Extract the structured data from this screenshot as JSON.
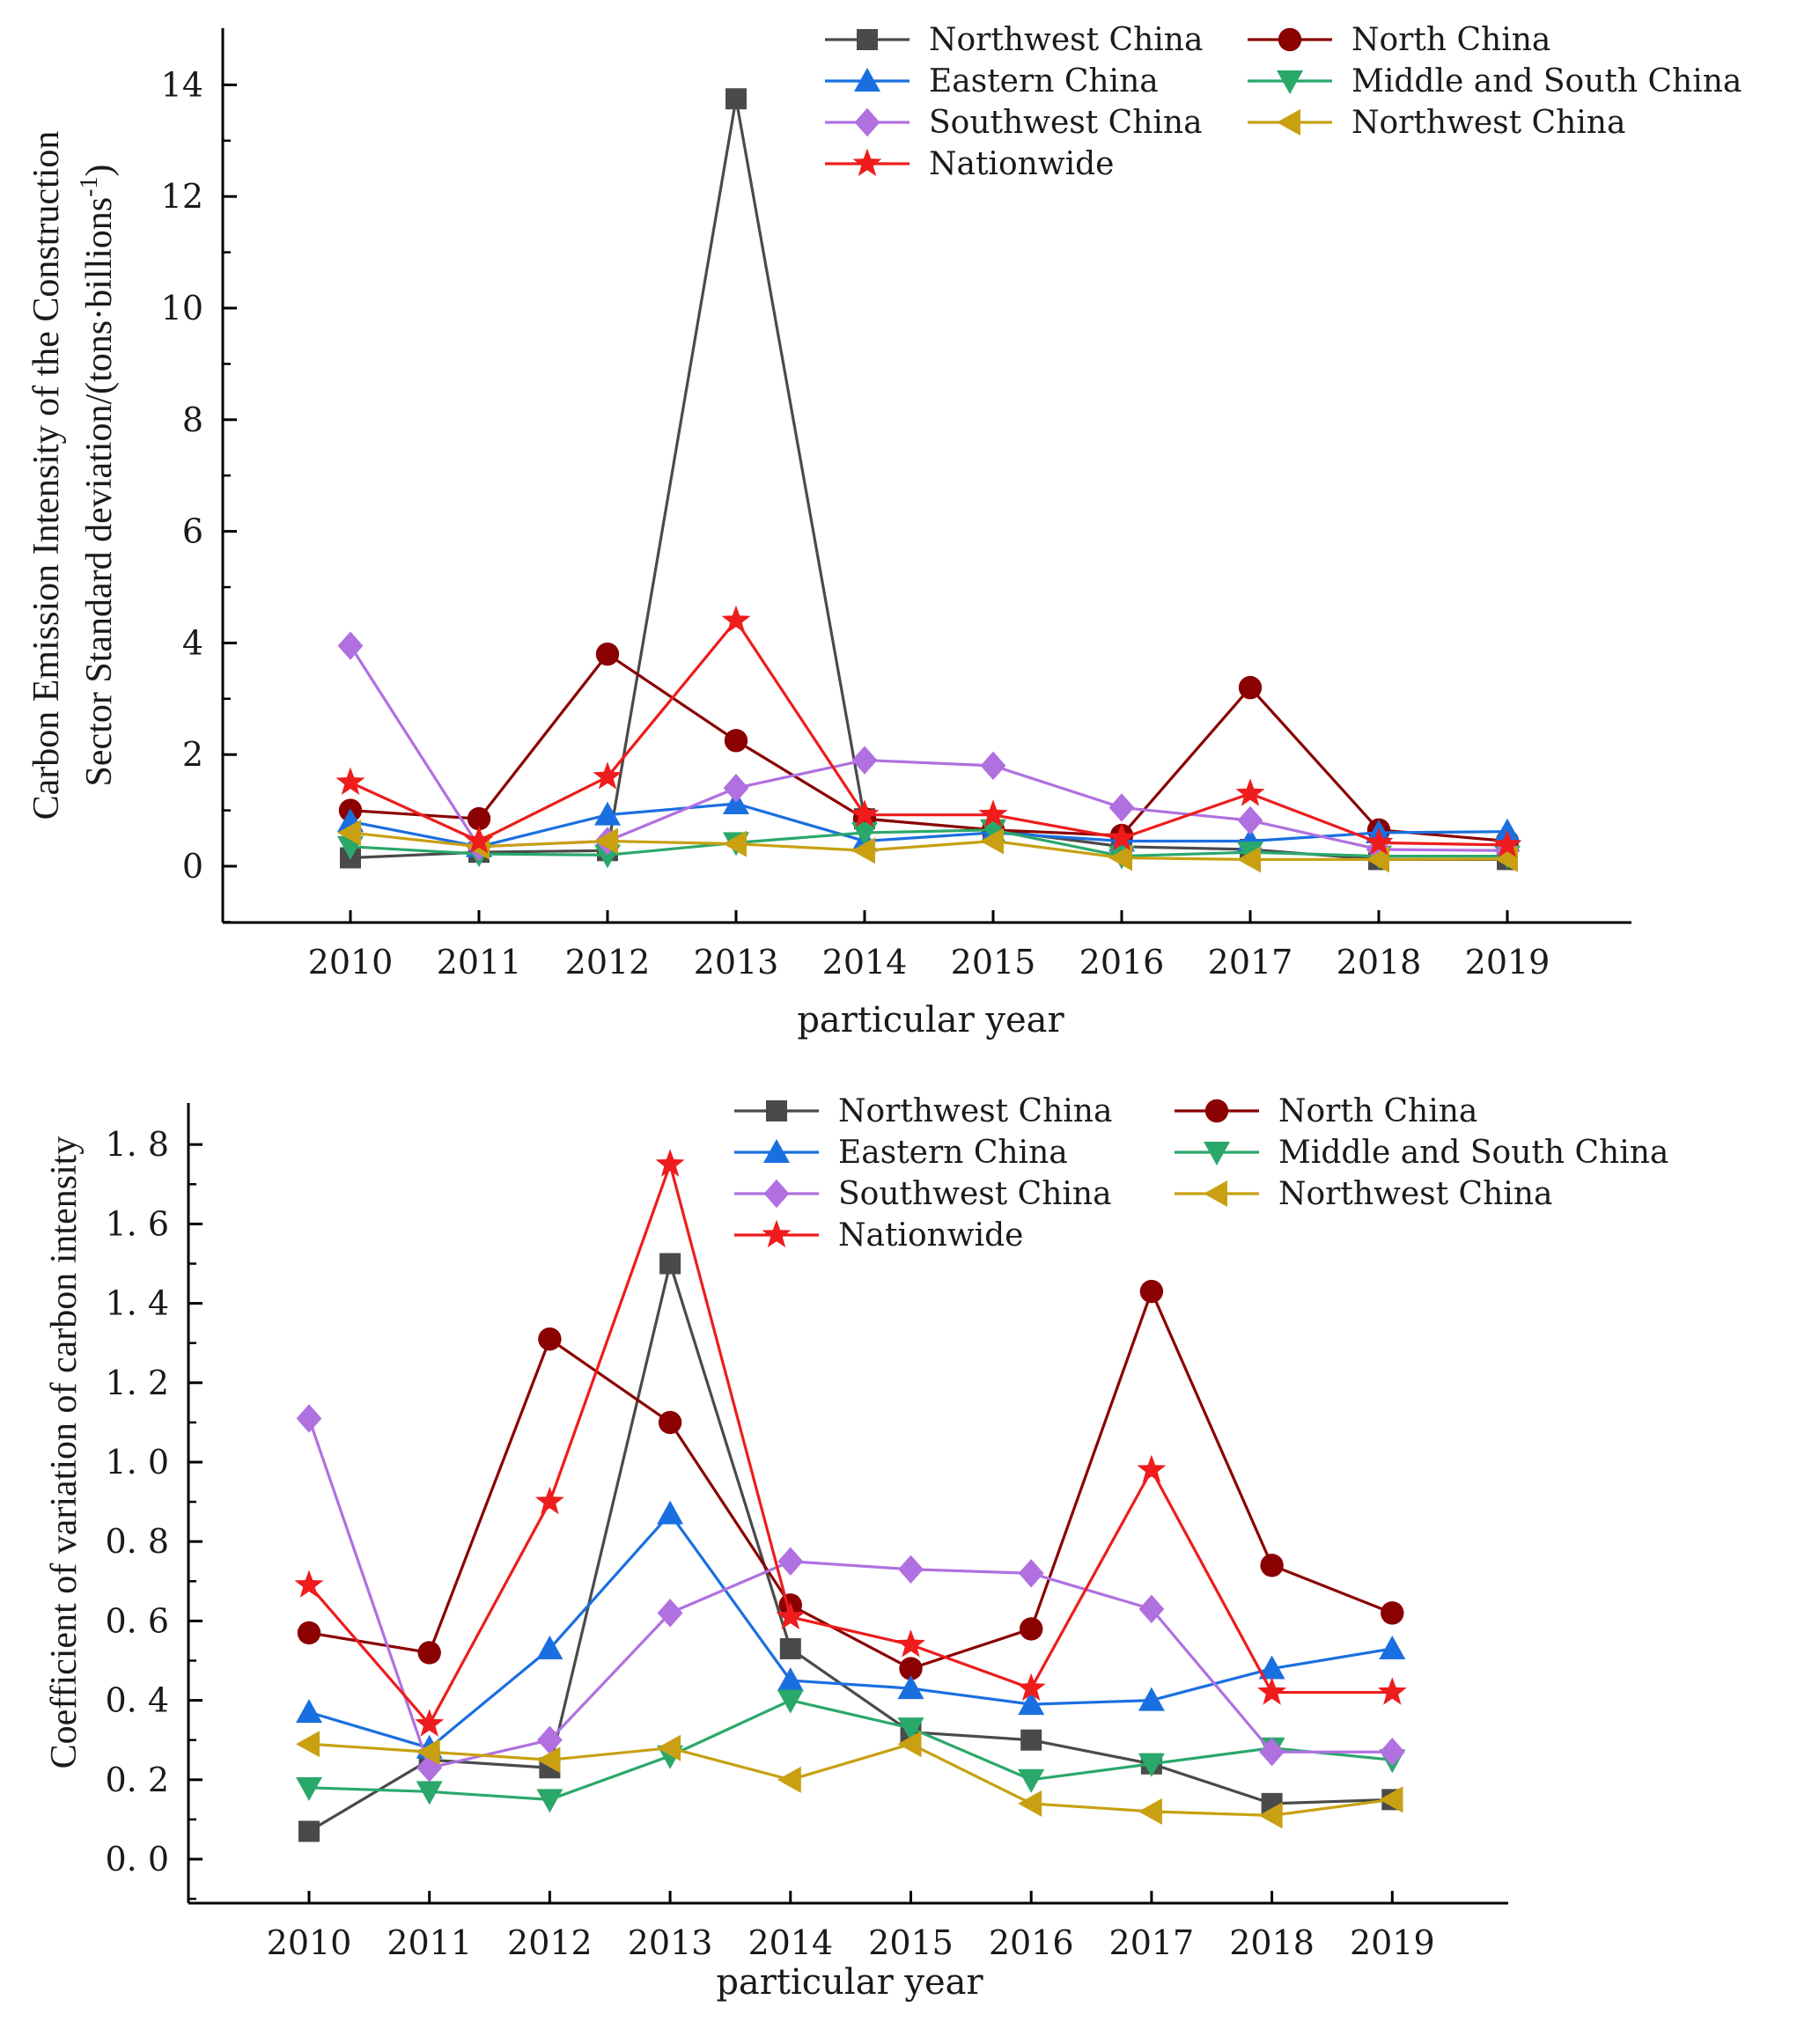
{
  "chart_data": [
    {
      "type": "line",
      "title": "",
      "xlabel": "particular year",
      "ylabel": "Carbon Emission Intensity of the Construction Sector Standard deviation/(tons·billions⁻¹)",
      "ylabel_line1": "Carbon Emission Intensity of the Construction",
      "ylabel_line2": "Sector Standard deviation/(tons·billions",
      "ylabel_sup": "-1",
      "ylabel_tail": ")",
      "categories": [
        "2010",
        "2011",
        "2012",
        "2013",
        "2014",
        "2015",
        "2016",
        "2017",
        "2018",
        "2019"
      ],
      "ylim": [
        -1,
        15
      ],
      "yticks": [
        0,
        2,
        4,
        6,
        8,
        10,
        12,
        14
      ],
      "ytick_labels": [
        "0",
        "2",
        "4",
        "6",
        "8",
        "10",
        "12",
        "14"
      ],
      "legend_position": "top-right",
      "series": [
        {
          "name": "Northwest China",
          "color": "#4a4a4a",
          "marker": "square",
          "values": [
            0.15,
            0.25,
            0.28,
            13.75,
            0.85,
            0.65,
            0.35,
            0.3,
            0.12,
            0.12
          ]
        },
        {
          "name": "North China",
          "color": "#8b0000",
          "marker": "circle",
          "values": [
            1.0,
            0.85,
            3.8,
            2.25,
            0.85,
            0.65,
            0.55,
            3.2,
            0.65,
            0.45
          ]
        },
        {
          "name": "Eastern China",
          "color": "#1a6fe0",
          "marker": "triangle-up",
          "values": [
            0.8,
            0.35,
            0.92,
            1.12,
            0.45,
            0.6,
            0.45,
            0.45,
            0.6,
            0.62
          ]
        },
        {
          "name": "Middle and South China",
          "color": "#2aa86a",
          "marker": "triangle-down",
          "values": [
            0.35,
            0.22,
            0.2,
            0.42,
            0.6,
            0.65,
            0.18,
            0.25,
            0.18,
            0.18
          ]
        },
        {
          "name": "Southwest China",
          "color": "#b070e0",
          "marker": "diamond",
          "values": [
            3.95,
            0.35,
            0.45,
            1.4,
            1.9,
            1.8,
            1.05,
            0.82,
            0.3,
            0.28
          ]
        },
        {
          "name": "Northwest China",
          "color": "#c8a012",
          "marker": "triangle-left",
          "values": [
            0.6,
            0.35,
            0.45,
            0.4,
            0.28,
            0.45,
            0.15,
            0.12,
            0.12,
            0.13
          ]
        },
        {
          "name": "Nationwide",
          "color": "#ee1c1c",
          "marker": "star",
          "values": [
            1.5,
            0.45,
            1.6,
            4.4,
            0.92,
            0.92,
            0.5,
            1.3,
            0.42,
            0.38
          ]
        }
      ]
    },
    {
      "type": "line",
      "title": "",
      "xlabel": "particular year",
      "ylabel": "Coefficient of variation of carbon intensity",
      "categories": [
        "2010",
        "2011",
        "2012",
        "2013",
        "2014",
        "2015",
        "2016",
        "2017",
        "2018",
        "2019"
      ],
      "ylim": [
        -0.1,
        1.9
      ],
      "yticks": [
        0,
        0.2,
        0.4,
        0.6,
        0.8,
        1.0,
        1.2,
        1.4,
        1.6,
        1.8
      ],
      "ytick_labels": [
        "0. 0",
        "0. 2",
        "0. 4",
        "0. 6",
        "0. 8",
        "1. 0",
        "1. 2",
        "1. 4",
        "1. 6",
        "1. 8"
      ],
      "legend_position": "top-right",
      "series": [
        {
          "name": "Northwest China",
          "color": "#4a4a4a",
          "marker": "square",
          "values": [
            0.07,
            0.25,
            0.23,
            1.5,
            0.53,
            0.32,
            0.3,
            0.24,
            0.14,
            0.15
          ]
        },
        {
          "name": "North China",
          "color": "#8b0000",
          "marker": "circle",
          "values": [
            0.57,
            0.52,
            1.31,
            1.1,
            0.64,
            0.48,
            0.58,
            1.43,
            0.74,
            0.62
          ]
        },
        {
          "name": "Eastern China",
          "color": "#1a6fe0",
          "marker": "triangle-up",
          "values": [
            0.37,
            0.28,
            0.53,
            0.87,
            0.45,
            0.43,
            0.39,
            0.4,
            0.48,
            0.53
          ]
        },
        {
          "name": "Middle and South China",
          "color": "#2aa86a",
          "marker": "triangle-down",
          "values": [
            0.18,
            0.17,
            0.15,
            0.26,
            0.4,
            0.33,
            0.2,
            0.24,
            0.28,
            0.25
          ]
        },
        {
          "name": "Southwest China",
          "color": "#b070e0",
          "marker": "diamond",
          "values": [
            1.11,
            0.23,
            0.3,
            0.62,
            0.75,
            0.73,
            0.72,
            0.63,
            0.27,
            0.27
          ]
        },
        {
          "name": "Northwest China",
          "color": "#c8a012",
          "marker": "triangle-left",
          "values": [
            0.29,
            0.27,
            0.25,
            0.28,
            0.2,
            0.29,
            0.14,
            0.12,
            0.11,
            0.15
          ]
        },
        {
          "name": "Nationwide",
          "color": "#ee1c1c",
          "marker": "star",
          "values": [
            0.69,
            0.34,
            0.9,
            1.75,
            0.61,
            0.54,
            0.43,
            0.98,
            0.42,
            0.42
          ]
        }
      ]
    }
  ]
}
